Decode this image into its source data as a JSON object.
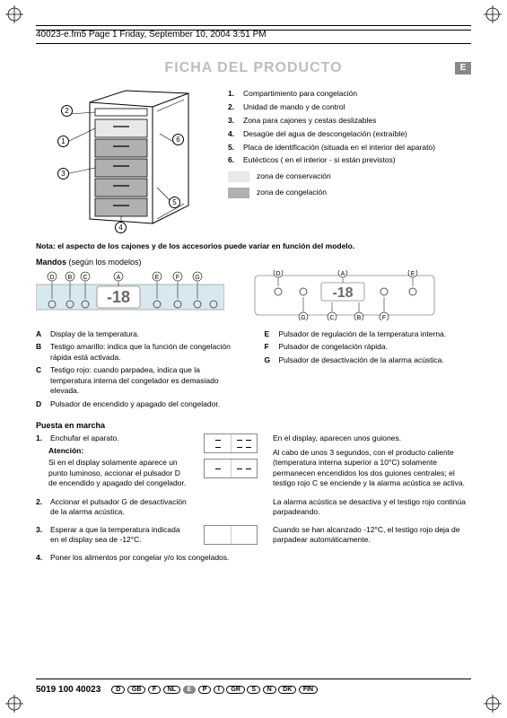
{
  "header": "40023-e.fm5  Page 1  Friday, September 10, 2004  3:51 PM",
  "title": "FICHA DEL PRODUCTO",
  "lang_badge": "E",
  "callouts": [
    "1",
    "2",
    "3",
    "4",
    "5",
    "6"
  ],
  "legend": [
    {
      "n": "1.",
      "t": "Compartimiento para congelación"
    },
    {
      "n": "2.",
      "t": "Unidad de mando y de control"
    },
    {
      "n": "3.",
      "t": "Zona para cajones y cestas deslizables"
    },
    {
      "n": "4.",
      "t": "Desagüe del agua de descongelación (extraíble)"
    },
    {
      "n": "5.",
      "t": "Placa de identificación (situada en el interior del aparato)"
    },
    {
      "n": "6.",
      "t": "Eutécticos ( en el interior - si están previstos)"
    }
  ],
  "zones": {
    "conserv": {
      "color": "#e8e8e8",
      "label": "zona de conservación"
    },
    "congel": {
      "color": "#b0b0b0",
      "label": "zona de congelación"
    }
  },
  "note_bold": "Nota: el aspecto de los cajones y de los accesorios puede variar en función del modelo.",
  "mandos_head_b": "Mandos",
  "mandos_head_rest": " (según los modelos)",
  "panel1": {
    "bg": "#d8e8ef",
    "display": "-18",
    "labels": [
      "A",
      "B",
      "C",
      "D",
      "E",
      "F",
      "G"
    ]
  },
  "panel2": {
    "display": "-18",
    "labels": [
      "D",
      "A",
      "E",
      "G",
      "C",
      "B",
      "F"
    ]
  },
  "mandos_left": [
    {
      "l": "A",
      "t": "Display de la temperatura."
    },
    {
      "l": "B",
      "t": "Testigo amarillo: indica que la función de congelación rápida está activada."
    },
    {
      "l": "C",
      "t": "Testigo rojo: cuando parpadea, indica que la temperatura interna del congelador es demasiado elevada."
    },
    {
      "l": "D",
      "t": "Pulsador de encendido y apagado del congelador."
    }
  ],
  "mandos_right": [
    {
      "l": "E",
      "t": "Pulsador de regulación de la temperatura interna."
    },
    {
      "l": "F",
      "t": "Pulsador de congelación rápida."
    },
    {
      "l": "G",
      "t": "Pulsador de desactivación de la alarma acústica."
    }
  ],
  "puesta_head": "Puesta en marcha",
  "step1": {
    "n": "1.",
    "t": "Enchufar el aparato."
  },
  "atencion": "Atención:",
  "atencion_body": "Si en el display solamente aparece un punto luminoso, accionar el pulsador D de encendido y apagado del congelador.",
  "right1": "En el display, aparecen unos guiones.",
  "right2": "Al cabo de unos 3 segundos, con el producto caliente (temperatura interna superior a 10°C) solamente permanecen encendidos los dos guiones centrales; el testigo rojo C se enciende y la alarma acústica se activa.",
  "step2": {
    "n": "2.",
    "t": "Accionar el pulsador G de desactivación de la alarma acústica."
  },
  "right3": "La alarma acústica se desactiva y el testigo rojo continúa parpadeando.",
  "step3": {
    "n": "3.",
    "t": "Esperar a que la temperatura indicada en el display sea de -12°C."
  },
  "right4": "Cuando se han alcanzado -12°C, el testigo rojo deja de parpadear automáticamente.",
  "step4": {
    "n": "4.",
    "t": "Poner los alimentos por congelar y/o los congelados."
  },
  "footer_code": "5019 100 40023",
  "langs": [
    "D",
    "GB",
    "F",
    "NL",
    "E",
    "P",
    "I",
    "GR",
    "S",
    "N",
    "DK",
    "FIN"
  ],
  "active_lang": "E",
  "colors": {
    "title_gray": "#bdbdbd",
    "badge": "#888888"
  }
}
